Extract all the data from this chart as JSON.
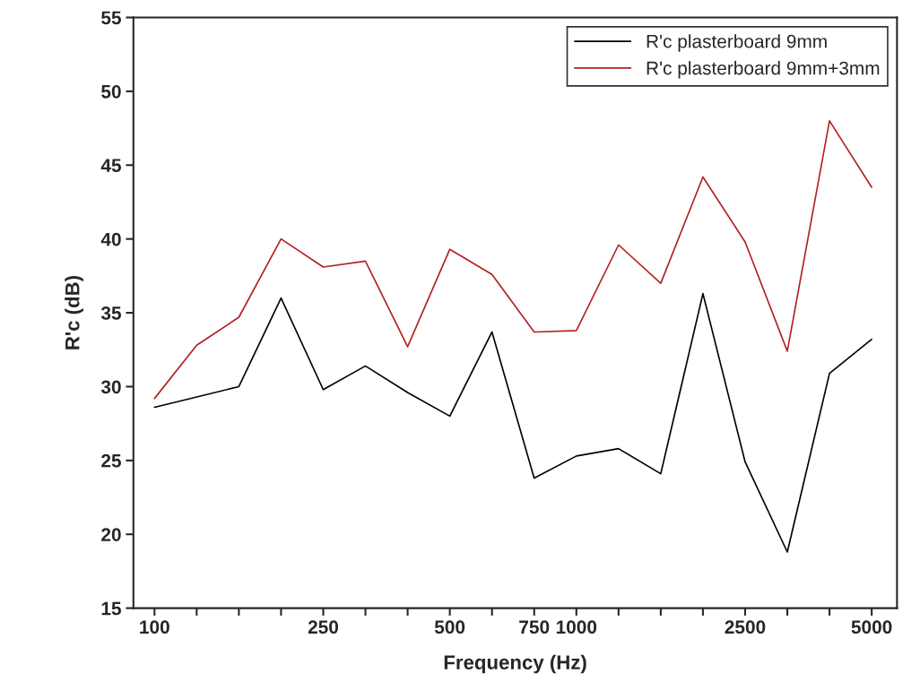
{
  "chart_data": {
    "type": "line",
    "xlabel": "Frequency (Hz)",
    "ylabel": "R'c (dB)",
    "categories": [
      "100",
      null,
      null,
      null,
      "250",
      null,
      null,
      "500",
      null,
      "750",
      "1000",
      null,
      null,
      null,
      "2500",
      null,
      null,
      "5000"
    ],
    "series": [
      {
        "name": "R'c plasterboard 9mm",
        "color": "#000000",
        "values": [
          28.6,
          29.3,
          30.0,
          36.0,
          29.8,
          31.4,
          29.6,
          28.0,
          33.7,
          23.8,
          25.3,
          25.8,
          24.1,
          36.3,
          24.9,
          18.8,
          30.9,
          33.2
        ]
      },
      {
        "name": "R'c plasterboard 9mm+3mm",
        "color": "#b22222",
        "values": [
          29.2,
          32.8,
          34.7,
          40.0,
          38.1,
          38.5,
          32.7,
          39.3,
          37.6,
          33.7,
          33.8,
          39.6,
          37.0,
          44.2,
          39.8,
          32.4,
          48.0,
          43.5
        ]
      }
    ],
    "ylim": [
      15,
      55
    ],
    "yticks": [
      15,
      20,
      25,
      30,
      35,
      40,
      45,
      50,
      55
    ],
    "legend": "top right",
    "grid": false,
    "marker": "none",
    "line_style": "solid"
  }
}
